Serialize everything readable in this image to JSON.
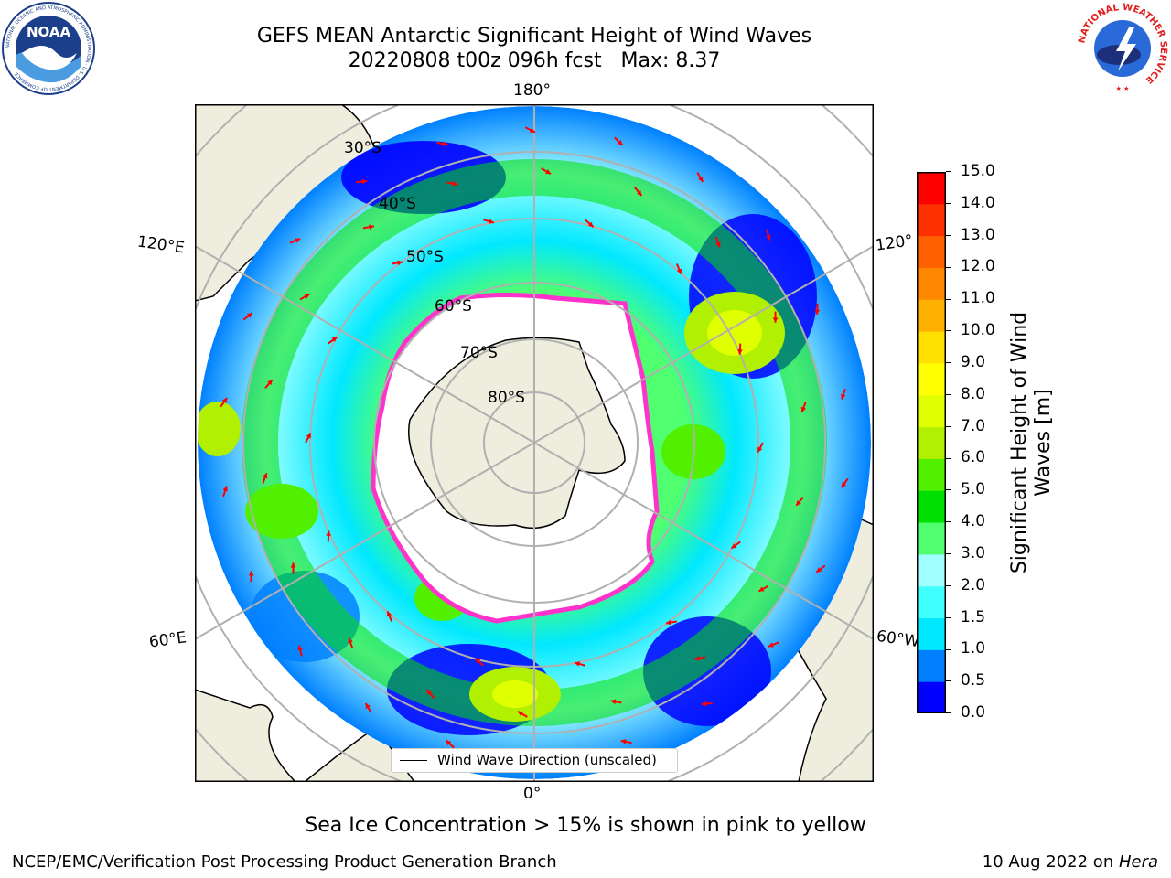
{
  "header": {
    "title_line1": "GEFS MEAN Antarctic Significant Height of Wind Waves",
    "title_line2": "20220808 t00z 096h fcst   Max: 8.37"
  },
  "logos": {
    "left": "NOAA",
    "left_ring": "NATIONAL OCEANIC AND ATMOSPHERIC ADMINISTRATION · U.S. DEPARTMENT OF COMMERCE",
    "right_ring": "NATIONAL WEATHER SERVICE"
  },
  "map": {
    "projection": "south-polar-stereographic",
    "lon_labels": {
      "top": "180°",
      "bottom": "0°",
      "left_upper": "120°E",
      "left_lower": "60°E",
      "right_upper": "120°",
      "right_lower": "60°W"
    },
    "lat_labels": [
      "30°S",
      "40°S",
      "50°S",
      "60°S",
      "70°S",
      "80°S"
    ],
    "legend_label": "Wind Wave Direction (unscaled)",
    "colors": {
      "land": "#efedde",
      "ice": "#ffffff",
      "ice_edge": "#ff33cc",
      "arrow": "#ff0000",
      "grid": "#b0b0b0"
    }
  },
  "colorbar": {
    "title_line1": "Significant Height of Wind",
    "title_line2": "Waves [m]",
    "ticks": [
      "0.0",
      "0.5",
      "1.0",
      "1.5",
      "2.0",
      "3.0",
      "4.0",
      "5.0",
      "6.0",
      "7.0",
      "8.0",
      "9.0",
      "10.0",
      "11.0",
      "12.0",
      "13.0",
      "14.0",
      "15.0"
    ],
    "colors": [
      "#0000ff",
      "#0080ff",
      "#00e8ff",
      "#40ffff",
      "#a0ffff",
      "#50ff70",
      "#00e000",
      "#50f000",
      "#b0f000",
      "#e0ff00",
      "#ffff00",
      "#ffe000",
      "#ffb000",
      "#ff8800",
      "#ff6000",
      "#ff3000",
      "#ff0000"
    ]
  },
  "chart_data": {
    "type": "heatmap",
    "title": "GEFS MEAN Antarctic Significant Height of Wind Waves",
    "subtitle": "20220808 t00z 096h fcst   Max: 8.37",
    "colorbar_label": "Significant Height of Wind Waves [m]",
    "colorbar_range": [
      0,
      15
    ],
    "max_value": 8.37,
    "legend": "Wind Wave Direction (unscaled)"
  },
  "caption": "Sea Ice Concentration > 15% is shown in pink to yellow",
  "footer": {
    "left": "NCEP/EMC/Verification Post Processing Product Generation Branch",
    "right_date": "10 Aug 2022 on ",
    "right_host": "Hera"
  }
}
